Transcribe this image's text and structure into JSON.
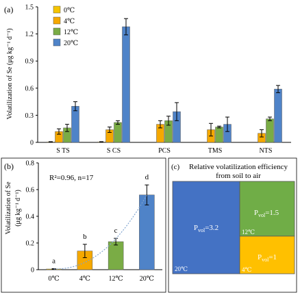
{
  "panel_a": {
    "label": "(a)",
    "ylabel": "Volatilization of Se (μg kg⁻¹ d⁻¹)",
    "chart_data": {
      "type": "bar",
      "categories": [
        "S TS",
        "S CS",
        "PCS",
        "TMS",
        "NTS"
      ],
      "ylim": [
        0,
        1.5
      ],
      "yticks": [
        "0",
        "0.3",
        "0.6",
        "0.9",
        "1.2",
        "1.5"
      ],
      "series": [
        {
          "name": "0℃",
          "color": "#f5c400",
          "values": [
            0.005,
            0.005,
            0.0,
            0.0,
            0.0
          ],
          "err": [
            0.003,
            0.003,
            0.0,
            0.0,
            0.0
          ]
        },
        {
          "name": "4℃",
          "color": "#f5a800",
          "values": [
            0.12,
            0.14,
            0.2,
            0.14,
            0.1
          ],
          "err": [
            0.03,
            0.03,
            0.04,
            0.07,
            0.04
          ]
        },
        {
          "name": "12℃",
          "color": "#7aac45",
          "values": [
            0.16,
            0.22,
            0.24,
            0.17,
            0.26
          ],
          "err": [
            0.04,
            0.02,
            0.05,
            0.01,
            0.02
          ]
        },
        {
          "name": "20℃",
          "color": "#4f83c8",
          "values": [
            0.4,
            1.28,
            0.34,
            0.2,
            0.59
          ],
          "err": [
            0.05,
            0.09,
            0.1,
            0.08,
            0.04
          ]
        }
      ],
      "legend": "top-left"
    }
  },
  "panel_b": {
    "label": "(b)",
    "ylabel_line1": "Volatilization of Se",
    "ylabel_line2": "(μg kg⁻¹ d⁻¹)",
    "annotation": "R²=0.96, n=17",
    "chart_data": {
      "type": "bar",
      "categories": [
        "0℃",
        "4℃",
        "12℃",
        "20℃"
      ],
      "values": [
        0.005,
        0.14,
        0.21,
        0.56
      ],
      "err": [
        0.003,
        0.05,
        0.025,
        0.075
      ],
      "colors": [
        "#f5c400",
        "#f5a800",
        "#7aac45",
        "#4f83c8"
      ],
      "letters": [
        "a",
        "b",
        "c",
        "d"
      ],
      "ylim": [
        0,
        0.8
      ],
      "yticks": [
        "0",
        "0.2",
        "0.4",
        "0.6",
        "0.8"
      ],
      "trend": "dotted-curve"
    }
  },
  "panel_c": {
    "label": "(c)",
    "title_line1": "Relative volatilization efficiency",
    "title_line2": "from soil to air",
    "cells": [
      {
        "label": "P",
        "sub": "vol",
        "value": "=3.2",
        "temp": "20℃",
        "color": "#4472c4"
      },
      {
        "label": "P",
        "sub": "vol",
        "value": "=1.5",
        "temp": "12℃",
        "color": "#70ad47"
      },
      {
        "label": "P",
        "sub": "vol",
        "value": "=1",
        "temp": "4℃",
        "color": "#ffc000"
      }
    ]
  }
}
